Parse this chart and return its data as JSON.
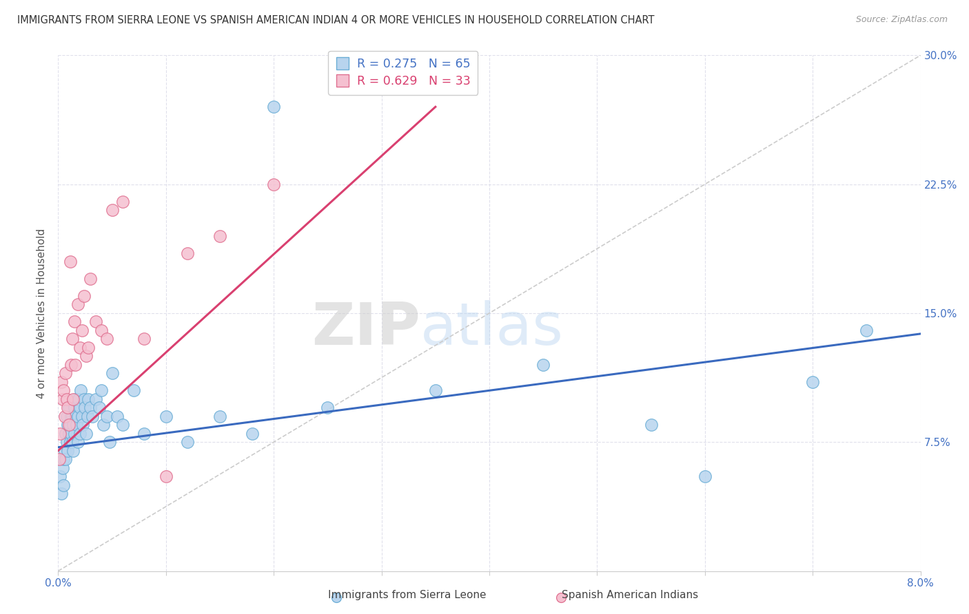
{
  "title": "IMMIGRANTS FROM SIERRA LEONE VS SPANISH AMERICAN INDIAN 4 OR MORE VEHICLES IN HOUSEHOLD CORRELATION CHART",
  "source": "Source: ZipAtlas.com",
  "ylabel": "4 or more Vehicles in Household",
  "xmin": 0.0,
  "xmax": 8.0,
  "ymin": 0.0,
  "ymax": 30.0,
  "yticks": [
    0.0,
    7.5,
    15.0,
    22.5,
    30.0
  ],
  "ytick_labels": [
    "",
    "7.5%",
    "15.0%",
    "22.5%",
    "30.0%"
  ],
  "blue_R": 0.275,
  "blue_N": 65,
  "pink_R": 0.629,
  "pink_N": 33,
  "blue_color": "#b8d4ee",
  "blue_edge": "#6baed6",
  "pink_color": "#f5c0d0",
  "pink_edge": "#e07090",
  "blue_line_color": "#3a6abf",
  "pink_line_color": "#d94070",
  "ref_line_color": "#cccccc",
  "watermark_zip": "ZIP",
  "watermark_atlas": "atlas",
  "background_color": "#ffffff",
  "grid_color": "#e0e0ec",
  "title_fontsize": 10.5,
  "blue_x": [
    0.02,
    0.03,
    0.04,
    0.05,
    0.05,
    0.06,
    0.07,
    0.07,
    0.08,
    0.08,
    0.09,
    0.09,
    0.1,
    0.1,
    0.11,
    0.11,
    0.12,
    0.12,
    0.13,
    0.13,
    0.14,
    0.14,
    0.15,
    0.15,
    0.16,
    0.16,
    0.17,
    0.18,
    0.18,
    0.19,
    0.2,
    0.2,
    0.21,
    0.22,
    0.23,
    0.24,
    0.25,
    0.26,
    0.27,
    0.28,
    0.3,
    0.32,
    0.35,
    0.38,
    0.4,
    0.42,
    0.45,
    0.48,
    0.5,
    0.55,
    0.6,
    0.7,
    0.8,
    1.0,
    1.2,
    1.5,
    1.8,
    2.0,
    2.5,
    3.5,
    4.5,
    5.5,
    6.0,
    7.0,
    7.5
  ],
  "blue_y": [
    5.5,
    4.5,
    6.0,
    6.5,
    5.0,
    7.0,
    8.0,
    6.5,
    7.5,
    9.0,
    8.5,
    7.0,
    8.0,
    9.5,
    8.5,
    7.5,
    9.0,
    8.0,
    7.5,
    9.0,
    8.5,
    7.0,
    9.5,
    8.0,
    9.0,
    10.0,
    8.5,
    9.0,
    7.5,
    10.0,
    9.5,
    8.0,
    10.5,
    9.0,
    8.5,
    10.0,
    9.5,
    8.0,
    9.0,
    10.0,
    9.5,
    9.0,
    10.0,
    9.5,
    10.5,
    8.5,
    9.0,
    7.5,
    11.5,
    9.0,
    8.5,
    10.5,
    8.0,
    9.0,
    7.5,
    9.0,
    8.0,
    27.0,
    9.5,
    10.5,
    12.0,
    8.5,
    5.5,
    11.0,
    14.0
  ],
  "pink_x": [
    0.01,
    0.02,
    0.03,
    0.04,
    0.05,
    0.06,
    0.07,
    0.08,
    0.09,
    0.1,
    0.11,
    0.12,
    0.13,
    0.14,
    0.15,
    0.16,
    0.18,
    0.2,
    0.22,
    0.24,
    0.26,
    0.28,
    0.3,
    0.35,
    0.4,
    0.45,
    0.5,
    0.6,
    0.8,
    1.0,
    1.2,
    1.5,
    2.0
  ],
  "pink_y": [
    6.5,
    8.0,
    11.0,
    10.0,
    10.5,
    9.0,
    11.5,
    10.0,
    9.5,
    8.5,
    18.0,
    12.0,
    13.5,
    10.0,
    14.5,
    12.0,
    15.5,
    13.0,
    14.0,
    16.0,
    12.5,
    13.0,
    17.0,
    14.5,
    14.0,
    13.5,
    21.0,
    21.5,
    13.5,
    5.5,
    18.5,
    19.5,
    22.5
  ],
  "blue_trend_x0": 0.0,
  "blue_trend_y0": 7.2,
  "blue_trend_x1": 8.0,
  "blue_trend_y1": 13.8,
  "pink_trend_x0": 0.0,
  "pink_trend_y0": 7.0,
  "pink_trend_x1": 3.5,
  "pink_trend_y1": 27.0
}
